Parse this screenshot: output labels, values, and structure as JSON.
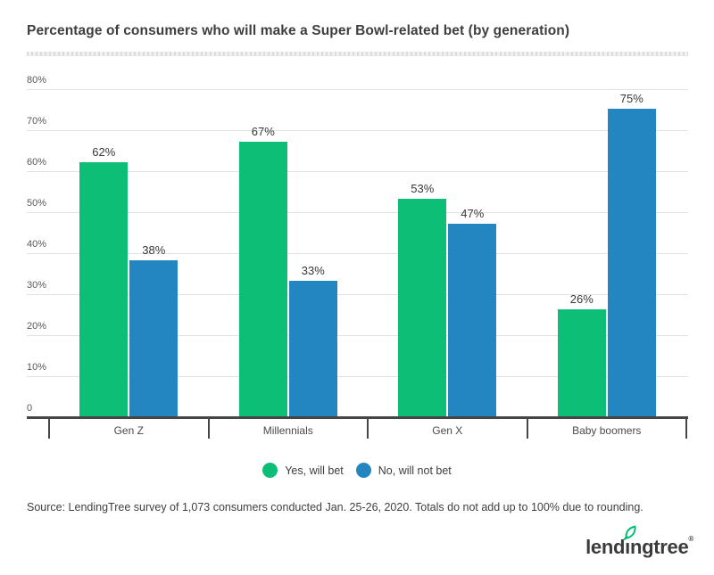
{
  "chart": {
    "title": "Percentage of consumers who will make a Super Bowl-related bet (by generation)"
  },
  "chart_data": {
    "type": "bar",
    "title": "Percentage of consumers who will make a Super Bowl-related bet (by generation)",
    "categories": [
      "Gen Z",
      "Millennials",
      "Gen X",
      "Baby boomers"
    ],
    "series": [
      {
        "name": "Yes, will bet",
        "color": "#0cbe76",
        "values": [
          62,
          67,
          53,
          26
        ]
      },
      {
        "name": "No, will not bet",
        "color": "#2386c0",
        "values": [
          38,
          33,
          47,
          75
        ]
      }
    ],
    "value_suffix": "%",
    "xlabel": "",
    "ylabel": "",
    "y_axis": {
      "min": 0,
      "max": 80,
      "step": 10,
      "ticks": [
        {
          "value": 80,
          "label": "80%"
        },
        {
          "value": 70,
          "label": "70%"
        },
        {
          "value": 60,
          "label": "60%"
        },
        {
          "value": 50,
          "label": "50%"
        },
        {
          "value": 40,
          "label": "40%"
        },
        {
          "value": 30,
          "label": "30%"
        },
        {
          "value": 20,
          "label": "20%"
        },
        {
          "value": 10,
          "label": "10%"
        },
        {
          "value": 0,
          "label": "0"
        }
      ]
    },
    "grid": true,
    "legend_position": "bottom"
  },
  "source": {
    "text": "Source: LendingTree survey of 1,073 consumers conducted Jan. 25-26, 2020. Totals do not add up to 100% due to rounding."
  },
  "branding": {
    "logo_part1": "lend",
    "logo_i": "ı",
    "logo_part2": "ngtree",
    "registered_mark": "®",
    "logo_color": "#3b3b3b",
    "leaf_color": "#00bc6f",
    "leaf_icon": "leaf-icon"
  }
}
